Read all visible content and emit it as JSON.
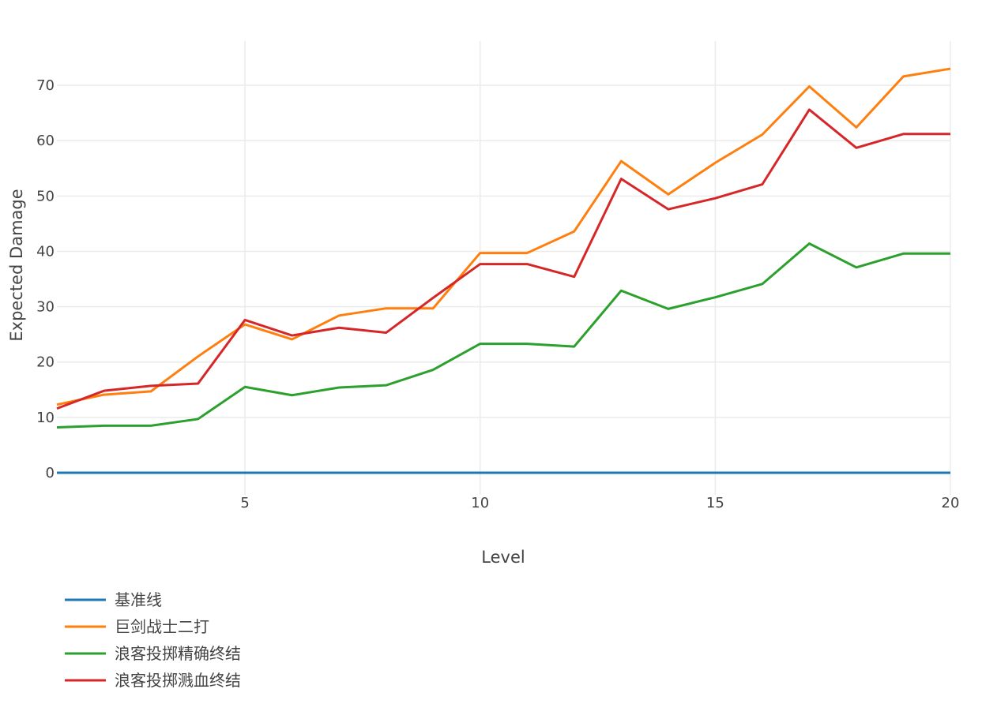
{
  "chart_data": {
    "type": "line",
    "title": "",
    "xlabel": "Level",
    "ylabel": "Expected Damage",
    "x": [
      1,
      2,
      3,
      4,
      5,
      6,
      7,
      8,
      9,
      10,
      11,
      12,
      13,
      14,
      15,
      16,
      17,
      18,
      19,
      20
    ],
    "xlim": [
      1,
      20
    ],
    "ylim": [
      -4,
      78
    ],
    "xticks": [
      5,
      10,
      15,
      20
    ],
    "yticks": [
      0,
      10,
      20,
      30,
      40,
      50,
      60,
      70
    ],
    "grid": true,
    "legend": "bottom-left",
    "series": [
      {
        "name": "基准线",
        "color": "#1f77b4",
        "values": [
          0,
          0,
          0,
          0,
          0,
          0,
          0,
          0,
          0,
          0,
          0,
          0,
          0,
          0,
          0,
          0,
          0,
          0,
          0,
          0
        ]
      },
      {
        "name": "巨剑战士二打",
        "color": "#ff7f0e",
        "values": [
          12.3,
          14.1,
          14.7,
          21.0,
          26.8,
          24.1,
          28.4,
          29.7,
          29.7,
          39.7,
          39.7,
          43.6,
          56.3,
          50.3,
          56.0,
          61.1,
          69.8,
          62.4,
          71.6,
          73.0
        ]
      },
      {
        "name": "浪客投掷精确终结",
        "color": "#2ca02c",
        "values": [
          8.2,
          8.5,
          8.5,
          9.7,
          15.5,
          14.0,
          15.4,
          15.8,
          18.6,
          23.3,
          23.3,
          22.8,
          32.9,
          29.6,
          31.7,
          34.1,
          41.4,
          37.1,
          39.6,
          39.6
        ]
      },
      {
        "name": "浪客投掷溅血终结",
        "color": "#d62728",
        "values": [
          11.6,
          14.8,
          15.7,
          16.1,
          27.6,
          24.8,
          26.2,
          25.3,
          31.6,
          37.7,
          37.7,
          35.4,
          53.1,
          47.6,
          49.6,
          52.1,
          65.6,
          58.7,
          61.2,
          61.2
        ]
      }
    ]
  }
}
